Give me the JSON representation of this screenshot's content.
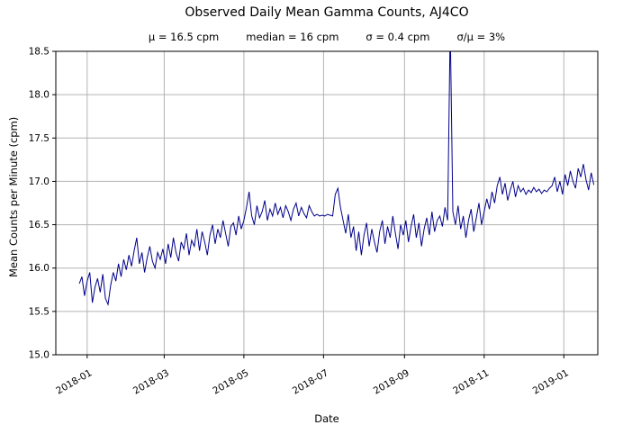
{
  "chart_data": {
    "type": "line",
    "title": "Observed Daily Mean Gamma Counts, AJ4CO",
    "stats": [
      "μ = 16.5 cpm",
      "median = 16 cpm",
      "σ = 0.4 cpm",
      "σ/μ = 3%"
    ],
    "xlabel": "Date",
    "ylabel": "Mean Counts per Minute (cpm)",
    "xlim": [
      "2017-12-08",
      "2019-01-27"
    ],
    "ylim": [
      15.0,
      18.5
    ],
    "yticks": [
      15.0,
      15.5,
      16.0,
      16.5,
      17.0,
      17.5,
      18.0,
      18.5
    ],
    "xticks": [
      {
        "date": "2018-01-01",
        "label": "2018-01"
      },
      {
        "date": "2018-03-01",
        "label": "2018-03"
      },
      {
        "date": "2018-05-01",
        "label": "2018-05"
      },
      {
        "date": "2018-07-01",
        "label": "2018-07"
      },
      {
        "date": "2018-09-01",
        "label": "2018-09"
      },
      {
        "date": "2018-11-01",
        "label": "2018-11"
      },
      {
        "date": "2019-01-01",
        "label": "2019-01"
      }
    ],
    "grid": true,
    "line_color": "#00008B",
    "grid_color": "#b3b3b3",
    "axis_color": "#000000",
    "series": [
      {
        "name": "daily mean gamma counts",
        "start_date": "2017-12-26",
        "step_days": 2,
        "values": [
          15.82,
          15.9,
          15.68,
          15.85,
          15.95,
          15.6,
          15.78,
          15.88,
          15.72,
          15.93,
          15.65,
          15.58,
          15.8,
          15.95,
          15.85,
          16.05,
          15.9,
          16.1,
          15.98,
          16.15,
          16.02,
          16.2,
          16.35,
          16.05,
          16.18,
          15.95,
          16.12,
          16.25,
          16.08,
          16.0,
          16.18,
          16.1,
          16.22,
          16.05,
          16.28,
          16.12,
          16.35,
          16.18,
          16.08,
          16.3,
          16.22,
          16.4,
          16.15,
          16.32,
          16.25,
          16.45,
          16.2,
          16.42,
          16.3,
          16.15,
          16.38,
          16.5,
          16.28,
          16.45,
          16.35,
          16.55,
          16.4,
          16.25,
          16.48,
          16.52,
          16.38,
          16.6,
          16.45,
          16.55,
          16.7,
          16.88,
          16.6,
          16.5,
          16.72,
          16.58,
          16.65,
          16.78,
          16.55,
          16.68,
          16.6,
          16.75,
          16.62,
          16.7,
          16.58,
          16.72,
          16.65,
          16.55,
          16.68,
          16.75,
          16.6,
          16.7,
          16.63,
          16.58,
          16.72,
          16.65,
          16.6,
          16.62,
          16.6,
          16.61,
          16.6,
          16.62,
          16.61,
          16.6,
          16.85,
          16.92,
          16.7,
          16.55,
          16.4,
          16.62,
          16.35,
          16.48,
          16.2,
          16.42,
          16.15,
          16.38,
          16.52,
          16.25,
          16.45,
          16.3,
          16.18,
          16.42,
          16.55,
          16.28,
          16.48,
          16.35,
          16.6,
          16.4,
          16.22,
          16.5,
          16.38,
          16.55,
          16.3,
          16.48,
          16.62,
          16.35,
          16.52,
          16.25,
          16.45,
          16.58,
          16.38,
          16.65,
          16.42,
          16.55,
          16.6,
          16.48,
          16.7,
          16.55,
          18.8,
          16.65,
          16.5,
          16.72,
          16.45,
          16.6,
          16.35,
          16.55,
          16.68,
          16.42,
          16.58,
          16.75,
          16.5,
          16.65,
          16.8,
          16.68,
          16.88,
          16.75,
          16.95,
          17.05,
          16.85,
          16.98,
          16.78,
          16.9,
          17.0,
          16.82,
          16.95,
          16.88,
          16.92,
          16.85,
          16.9,
          16.87,
          16.93,
          16.88,
          16.91,
          16.86,
          16.9,
          16.88,
          16.92,
          16.95,
          17.05,
          16.88,
          17.0,
          16.85,
          17.08,
          16.95,
          17.12,
          17.0,
          16.92,
          17.15,
          17.05,
          17.2,
          17.02,
          16.9,
          17.1,
          16.96
        ]
      }
    ]
  }
}
